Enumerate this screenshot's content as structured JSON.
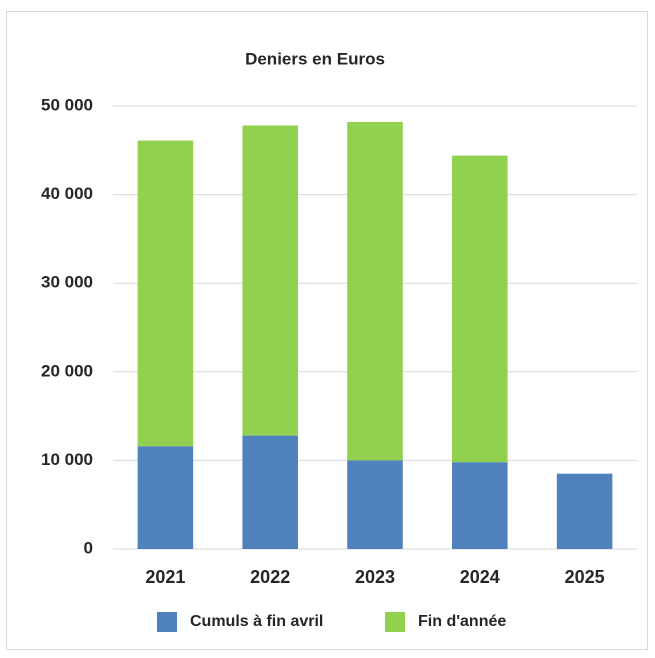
{
  "chart_data": {
    "type": "stacked_bar",
    "title": "Deniers en Euros",
    "categories": [
      "2021",
      "2022",
      "2023",
      "2024",
      "2025"
    ],
    "series": [
      {
        "name": "Cumuls à fin avril",
        "color": "#4f81bd",
        "values": [
          11600,
          12800,
          10000,
          9800,
          8500
        ]
      },
      {
        "name": "Fin d'année",
        "color": "#92d050",
        "values": [
          34500,
          35000,
          38200,
          34600,
          null
        ]
      }
    ],
    "ylim": [
      0,
      50000
    ],
    "yticks": [
      0,
      {
        "value": 10000,
        "label": "10 000"
      },
      {
        "value": 20000,
        "label": "20 000"
      },
      {
        "value": 30000,
        "label": "30 000"
      },
      {
        "value": 40000,
        "label": "40 000"
      },
      {
        "value": 50000,
        "label": "50 000"
      }
    ],
    "grid": true,
    "legend": "bottom"
  }
}
